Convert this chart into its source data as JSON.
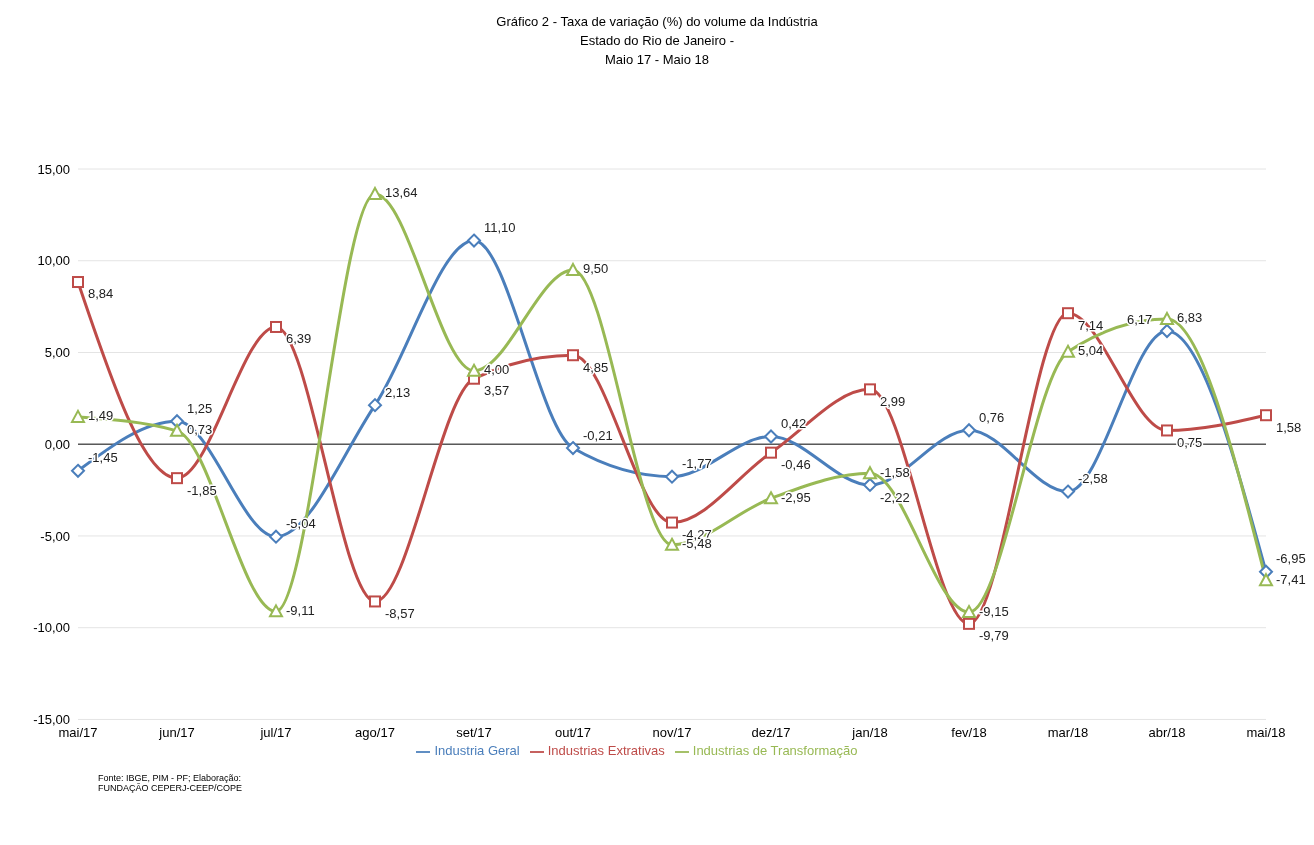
{
  "chart_data": {
    "type": "line",
    "title": "Gráfico 2 - Taxa de variação (%) do volume da Indústria",
    "subtitle": "Estado do Rio de Janeiro -\nMaio 17 - Maio 18",
    "categories": [
      "mai/17",
      "jun/17",
      "jul/17",
      "ago/17",
      "set/17",
      "out/17",
      "nov/17",
      "dez/17",
      "jan/18",
      "fev/18",
      "mar/18",
      "abr/18",
      "mai/18"
    ],
    "series": [
      {
        "name": "Industria Geral",
        "color": "#4a7ebb",
        "marker": "diamond",
        "values": [
          -1.45,
          1.25,
          -5.04,
          2.13,
          11.1,
          -0.21,
          -1.77,
          0.42,
          -2.22,
          0.76,
          -2.58,
          6.17,
          -6.95
        ],
        "value_labels": [
          "-1,45",
          "1,25",
          "-5,04",
          "2,13",
          "11,10",
          "-0,21",
          "-1,77",
          "0,42",
          "-2,22",
          "0,76",
          "-2,58",
          "6,17",
          "-6,95"
        ]
      },
      {
        "name": "Industrias Extrativas",
        "color": "#be4b48",
        "marker": "square",
        "values": [
          8.84,
          -1.85,
          6.39,
          -8.57,
          3.57,
          4.85,
          -4.27,
          -0.46,
          2.99,
          -9.79,
          7.14,
          0.75,
          1.58
        ],
        "value_labels": [
          "8,84",
          "-1,85",
          "6,39",
          "-8,57",
          "3,57",
          "4,85",
          "-4,27",
          "-0,46",
          "2,99",
          "-9,79",
          "7,14",
          "0,75",
          "1,58"
        ]
      },
      {
        "name": "Industrias de Transformação",
        "color": "#98b954",
        "marker": "triangle",
        "values": [
          1.49,
          0.73,
          -9.11,
          13.64,
          4.0,
          9.5,
          -5.48,
          -2.95,
          -1.58,
          -9.15,
          5.04,
          6.83,
          -7.41
        ],
        "value_labels": [
          "1,49",
          "0,73",
          "-9,11",
          "13,64",
          "4,00",
          "9,50",
          "-5,48",
          "-2,95",
          "-1,58",
          "-9,15",
          "5,04",
          "6,83",
          "-7,41"
        ]
      }
    ],
    "ylim": [
      -15,
      15
    ],
    "yticks": [
      {
        "value": -15,
        "label": "-15,00"
      },
      {
        "value": -10,
        "label": "-10,00"
      },
      {
        "value": -5,
        "label": "-5,00"
      },
      {
        "value": 0,
        "label": "0,00"
      },
      {
        "value": 5,
        "label": "5,00"
      },
      {
        "value": 10,
        "label": "10,00"
      },
      {
        "value": 15,
        "label": "15,00"
      }
    ],
    "grid": "y",
    "legend": "bottom",
    "line_style": "solid",
    "ref_lines": [
      {
        "axis": "y",
        "value": 0,
        "color": "#595959"
      }
    ],
    "annotations": [
      "Fonte: IBGE, PIM - PF; Elaboração:\nFUNDAÇÃO CEPERJ-CEEP/COPE"
    ]
  }
}
